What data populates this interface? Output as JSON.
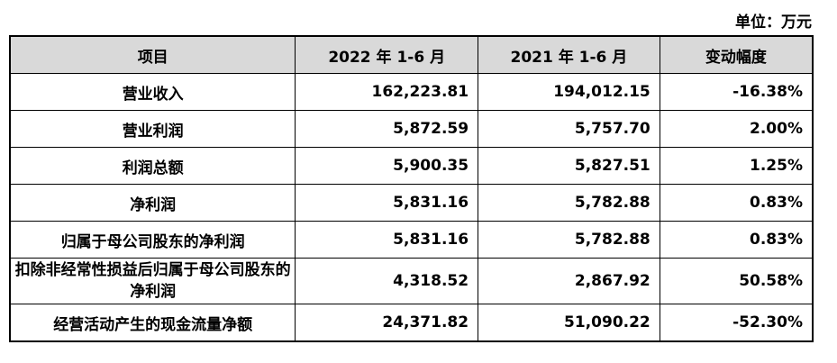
{
  "unit": "单位：万元",
  "headers": [
    "项目",
    "2022 年 1-6 月",
    "2021 年 1-6 月",
    "变动幅度"
  ],
  "rows": [
    [
      "营业收入",
      "162,223.81",
      "194,012.15",
      "-16.38%"
    ],
    [
      "营业利润",
      "5,872.59",
      "5,757.70",
      "2.00%"
    ],
    [
      "利润总额",
      "5,900.35",
      "5,827.51",
      "1.25%"
    ],
    [
      "净利润",
      "5,831.16",
      "5,782.88",
      "0.83%"
    ],
    [
      "归属于母公司股东的净利润",
      "5,831.16",
      "5,782.88",
      "0.83%"
    ],
    [
      "扣除非经常性损益后归属于母公司股东的净利润",
      "4,318.52",
      "2,867.92",
      "50.58%"
    ],
    [
      "经营活动产生的现金流量净额",
      "24,371.82",
      "51,090.22",
      "-52.30%"
    ]
  ]
}
